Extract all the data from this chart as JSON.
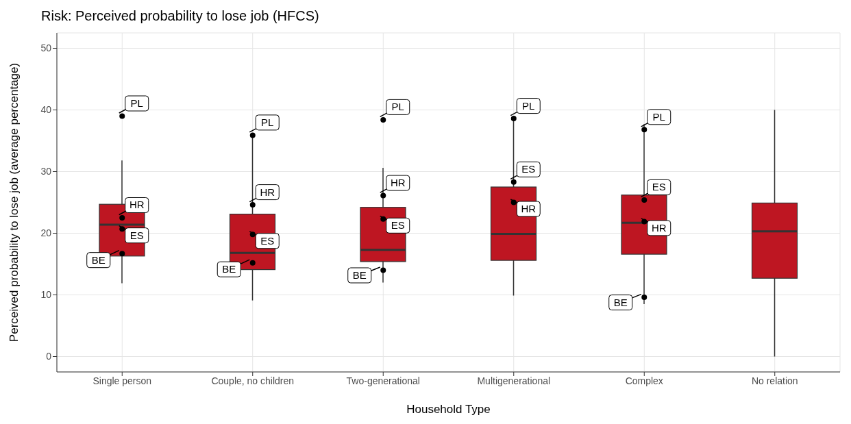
{
  "chart_data": {
    "type": "box",
    "title": "Risk: Perceived probability to lose job (HFCS)",
    "xlabel": "Household Type",
    "ylabel": "Perceived probability to lose job (average percentage)",
    "categories": [
      "Single person",
      "Couple, no children",
      "Two-generational",
      "Multigenerational",
      "Complex",
      "No relation"
    ],
    "ylim": [
      -2.5,
      52.5
    ],
    "yticks": [
      0,
      10,
      20,
      30,
      40,
      50
    ],
    "grid": true,
    "series": [
      {
        "color": "#be1622",
        "boxes": [
          {
            "low": 11.9,
            "q1": 16.3,
            "median": 21.4,
            "q3": 24.7,
            "high": 31.8
          },
          {
            "low": 9.1,
            "q1": 14.1,
            "median": 16.8,
            "q3": 23.1,
            "high": 35.9
          },
          {
            "low": 12.0,
            "q1": 15.4,
            "median": 17.3,
            "q3": 24.2,
            "high": 30.6
          },
          {
            "low": 9.9,
            "q1": 15.6,
            "median": 19.9,
            "q3": 27.5,
            "high": 38.6
          },
          {
            "low": 8.5,
            "q1": 16.6,
            "median": 21.7,
            "q3": 26.2,
            "high": 37.7
          },
          {
            "low": 0,
            "q1": 12.7,
            "median": 20.3,
            "q3": 24.9,
            "high": 40.0
          }
        ]
      },
      {
        "type": "scatter",
        "name": "PL",
        "color": "#000000",
        "marker": "circle",
        "x": [
          "Single person",
          "Couple, no children",
          "Two-generational",
          "Multigenerational",
          "Complex"
        ],
        "values": [
          39.0,
          35.9,
          38.4,
          38.6,
          36.8
        ]
      },
      {
        "type": "scatter",
        "name": "HR",
        "color": "#000000",
        "marker": "circle",
        "x": [
          "Single person",
          "Couple, no children",
          "Two-generational",
          "Multigenerational",
          "Complex"
        ],
        "values": [
          22.5,
          24.6,
          26.1,
          25.0,
          21.9
        ]
      },
      {
        "type": "scatter",
        "name": "ES",
        "color": "#000000",
        "marker": "circle",
        "x": [
          "Single person",
          "Couple, no children",
          "Two-generational",
          "Multigenerational",
          "Complex"
        ],
        "values": [
          20.7,
          19.8,
          22.3,
          28.3,
          25.4
        ]
      },
      {
        "type": "scatter",
        "name": "BE",
        "color": "#000000",
        "marker": "circle",
        "x": [
          "Single person",
          "Couple, no children",
          "Two-generational",
          "Complex"
        ],
        "values": [
          16.7,
          15.2,
          14.0,
          9.6
        ]
      }
    ]
  }
}
